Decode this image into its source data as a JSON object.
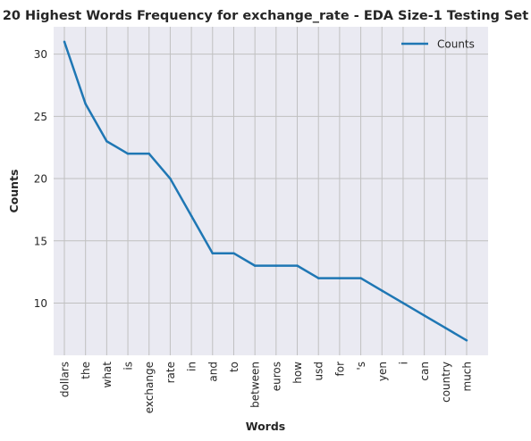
{
  "chart_data": {
    "type": "line",
    "title": "20 Highest Words Frequency for exchange_rate - EDA Size-1 Testing Set",
    "xlabel": "Words",
    "ylabel": "Counts",
    "categories": [
      "dollars",
      "the",
      "what",
      "is",
      "exchange",
      "rate",
      "in",
      "and",
      "to",
      "between",
      "euros",
      "how",
      "usd",
      "for",
      "'s",
      "yen",
      "i",
      "can",
      "country",
      "much"
    ],
    "series": [
      {
        "name": "Counts",
        "values": [
          31,
          26,
          23,
          22,
          22,
          20,
          17,
          14,
          14,
          13,
          13,
          13,
          12,
          12,
          12,
          11,
          10,
          9,
          8,
          7
        ]
      }
    ],
    "yticks": [
      10,
      15,
      20,
      25,
      30
    ],
    "ylim": [
      5.8,
      32.2
    ],
    "grid": true,
    "legend": "top-right",
    "colors": {
      "background": "#EAEAF2",
      "grid": "#C0C0C0",
      "line": "#1F77B4"
    }
  }
}
